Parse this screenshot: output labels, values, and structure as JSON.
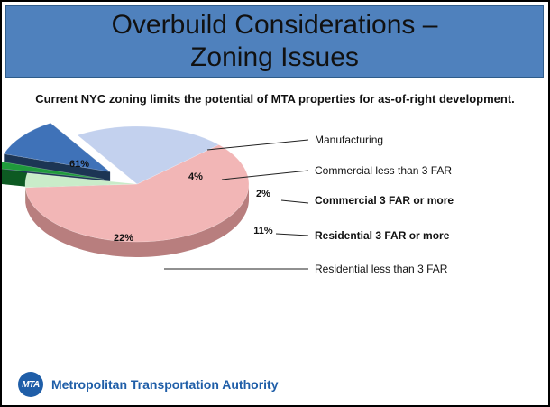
{
  "slide": {
    "title_line1": "Overbuild Considerations –",
    "title_line2": "Zoning Issues",
    "subtitle": "Current NYC zoning limits the potential of MTA properties for as-of-right development.",
    "logo_text": "MTA",
    "organization": "Metropolitan Transportation Authority"
  },
  "chart_data": {
    "type": "pie",
    "title": "",
    "labels": [
      "Manufacturing",
      "Commercial less than 3 FAR",
      "Commercial 3 FAR or more",
      "Residential 3 FAR or more",
      "Residential less than 3 FAR"
    ],
    "values": [
      61,
      4,
      2,
      11,
      22
    ],
    "value_labels": [
      "61%",
      "4%",
      "2%",
      "11%",
      "22%"
    ],
    "bold_labels": [
      false,
      false,
      true,
      true,
      false
    ],
    "exploded": [
      false,
      false,
      true,
      true,
      false
    ],
    "colors": [
      "#f2b6b6",
      "#c9ecc9",
      "#1f9a3c",
      "#3f72b8",
      "#c3d1ee"
    ],
    "side_colors": [
      "#b87e7e",
      "#8fb98f",
      "#0d5a22",
      "#1c3554",
      "#7a7f8c"
    ],
    "legend": "callouts-right",
    "three_d": true
  }
}
